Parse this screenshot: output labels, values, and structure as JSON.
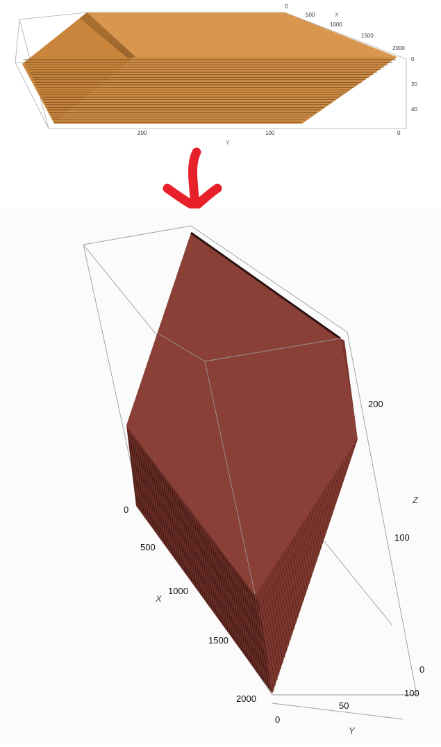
{
  "colors": {
    "top_solid": "#d9964e",
    "top_solid_side": "#c9853c",
    "bottom_solid": "#8a3f37",
    "bottom_solid_side": "#7a342c",
    "arrow": "#e8202a",
    "box_edge": "#9a9a9a"
  },
  "top_plot": {
    "x_axis": {
      "label": "X",
      "ticks": [
        "0",
        "500",
        "1000",
        "1500",
        "2000"
      ]
    },
    "y_axis": {
      "label": "Y",
      "ticks": [
        "200",
        "100",
        "0"
      ]
    },
    "z_axis": {
      "label": "",
      "ticks": [
        "0",
        "20",
        "40"
      ]
    }
  },
  "arrow": {
    "icon": "red-hand-drawn-down-arrow"
  },
  "bottom_plot": {
    "x_axis": {
      "label": "X",
      "ticks": [
        "0",
        "500",
        "1000",
        "1500",
        "2000"
      ]
    },
    "y_axis": {
      "label": "Y",
      "ticks": [
        "0",
        "50",
        "100"
      ]
    },
    "z_axis": {
      "label": "Z",
      "ticks": [
        "200",
        "100",
        "0"
      ]
    }
  }
}
